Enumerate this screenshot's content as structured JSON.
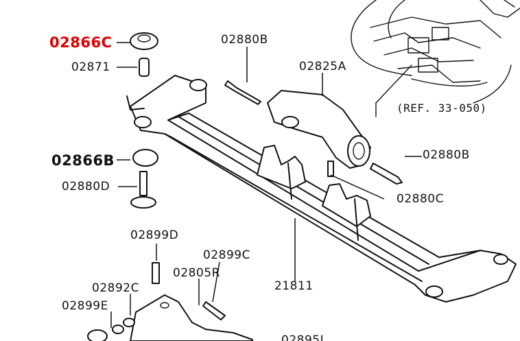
{
  "parts": {
    "p02866C": "02866C",
    "p02871": "02871",
    "p02866B": "02866B",
    "p02880D": "02880D",
    "p02880B_top": "02880B",
    "p02825A": "02825A",
    "p02880B_right": "02880B",
    "p02880C": "02880C",
    "p21811": "21811",
    "p02899D": "02899D",
    "p02899C": "02899C",
    "p02892C": "02892C",
    "p02805R": "02805R",
    "p02899E": "02899E",
    "p_cut": "02895L"
  },
  "reference": "(REF. 33-050)",
  "colors": {
    "highlight": "#e00000",
    "ink": "#111111",
    "background": "#ffffff"
  }
}
